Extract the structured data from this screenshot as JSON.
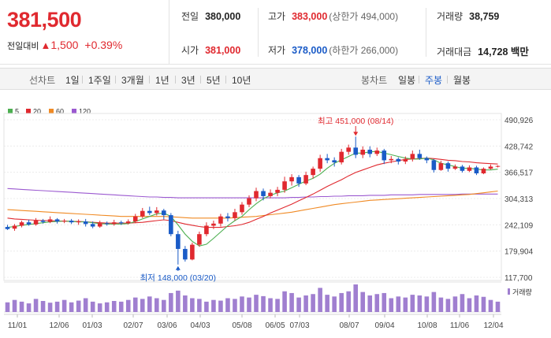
{
  "summary": {
    "price": "381,500",
    "change_label": "전일대비",
    "change_arrow": "▲",
    "change_value": "1,500",
    "change_pct": "+0.39%",
    "prev_close": {
      "label": "전일",
      "value": "380,000"
    },
    "high": {
      "label": "고가",
      "value": "383,000",
      "sub": "(상한가 494,000)"
    },
    "volume": {
      "label": "거래량",
      "value": "38,759"
    },
    "open": {
      "label": "시가",
      "value": "381,000"
    },
    "low": {
      "label": "저가",
      "value": "378,000",
      "sub": "(하한가 266,000)"
    },
    "amount": {
      "label": "거래대금",
      "value": "14,728 백만"
    }
  },
  "period_bar": {
    "line_label": "선차트",
    "line_periods": [
      "1일",
      "1주일",
      "3개월",
      "1년",
      "3년",
      "5년",
      "10년"
    ],
    "candle_label": "봉차트",
    "candle_periods": [
      "일봉",
      "주봉",
      "월봉"
    ],
    "active_candle": "주봉"
  },
  "colors": {
    "up": "#e0292f",
    "down": "#1a5bc7",
    "ma5": "#4caf50",
    "ma20": "#e0292f",
    "ma60": "#f08a24",
    "ma120": "#9b59d0",
    "volume": "#a07fd0"
  },
  "chart_data": {
    "type": "candlestick",
    "legend": [
      {
        "name": "5",
        "color": "#4caf50"
      },
      {
        "name": "20",
        "color": "#e0292f"
      },
      {
        "name": "60",
        "color": "#f08a24"
      },
      {
        "name": "120",
        "color": "#9b59d0"
      }
    ],
    "y_ticks": [
      490926,
      428742,
      366517,
      304313,
      242109,
      179904,
      117700
    ],
    "y_tick_labels": [
      "490,926",
      "428,742",
      "366,517",
      "304,313",
      "242,109",
      "179,904",
      "117,700"
    ],
    "ylim": [
      117700,
      490926
    ],
    "x_tick_labels": [
      "11/01",
      "12/06",
      "01/03",
      "02/07",
      "03/06",
      "04/03",
      "05/08",
      "06/05",
      "07/03",
      "08/07",
      "09/04",
      "10/08",
      "11/06",
      "12/04"
    ],
    "annotations": {
      "high": {
        "label": "최고 451,000 (08/14)",
        "value": 451000,
        "index": 49
      },
      "low": {
        "label": "최저 148,000 (03/20)",
        "value": 148000,
        "index": 24
      }
    },
    "volume_label": "거래량",
    "candles": [
      [
        237,
        232,
        242,
        230
      ],
      [
        233,
        240,
        244,
        228
      ],
      [
        240,
        248,
        252,
        236
      ],
      [
        248,
        243,
        254,
        240
      ],
      [
        243,
        252,
        258,
        240
      ],
      [
        252,
        249,
        256,
        245
      ],
      [
        249,
        255,
        262,
        246
      ],
      [
        255,
        250,
        258,
        245
      ],
      [
        250,
        252,
        256,
        246
      ],
      [
        252,
        248,
        256,
        244
      ],
      [
        248,
        250,
        255,
        242
      ],
      [
        250,
        244,
        256,
        238
      ],
      [
        244,
        238,
        250,
        234
      ],
      [
        238,
        246,
        252,
        235
      ],
      [
        246,
        244,
        250,
        240
      ],
      [
        244,
        248,
        254,
        240
      ],
      [
        248,
        246,
        252,
        242
      ],
      [
        246,
        250,
        255,
        243
      ],
      [
        250,
        262,
        268,
        246
      ],
      [
        262,
        275,
        282,
        258
      ],
      [
        275,
        270,
        285,
        265
      ],
      [
        270,
        276,
        284,
        264
      ],
      [
        276,
        265,
        280,
        255
      ],
      [
        265,
        220,
        270,
        215
      ],
      [
        220,
        185,
        228,
        148
      ],
      [
        185,
        160,
        192,
        155
      ],
      [
        160,
        195,
        200,
        158
      ],
      [
        195,
        220,
        226,
        190
      ],
      [
        220,
        240,
        248,
        215
      ],
      [
        240,
        245,
        252,
        232
      ],
      [
        245,
        262,
        268,
        238
      ],
      [
        262,
        258,
        270,
        250
      ],
      [
        258,
        272,
        280,
        252
      ],
      [
        272,
        290,
        296,
        266
      ],
      [
        290,
        305,
        312,
        284
      ],
      [
        305,
        322,
        330,
        298
      ],
      [
        322,
        310,
        328,
        300
      ],
      [
        310,
        318,
        326,
        305
      ],
      [
        318,
        325,
        332,
        310
      ],
      [
        325,
        345,
        356,
        318
      ],
      [
        345,
        355,
        362,
        335
      ],
      [
        355,
        340,
        360,
        332
      ],
      [
        340,
        360,
        368,
        336
      ],
      [
        360,
        375,
        380,
        352
      ],
      [
        375,
        400,
        408,
        368
      ],
      [
        400,
        395,
        410,
        388
      ],
      [
        395,
        390,
        402,
        380
      ],
      [
        390,
        415,
        422,
        385
      ],
      [
        415,
        425,
        432,
        408
      ],
      [
        425,
        408,
        451,
        400
      ],
      [
        408,
        420,
        428,
        400
      ],
      [
        420,
        410,
        428,
        402
      ],
      [
        410,
        418,
        425,
        405
      ],
      [
        418,
        395,
        422,
        386
      ],
      [
        395,
        398,
        405,
        388
      ],
      [
        398,
        392,
        402,
        385
      ],
      [
        392,
        398,
        404,
        386
      ],
      [
        398,
        410,
        418,
        392
      ],
      [
        410,
        400,
        420,
        396
      ],
      [
        400,
        395,
        404,
        388
      ],
      [
        395,
        372,
        398,
        366
      ],
      [
        372,
        388,
        394,
        370
      ],
      [
        388,
        375,
        392,
        368
      ],
      [
        375,
        380,
        385,
        372
      ],
      [
        380,
        370,
        384,
        366
      ],
      [
        370,
        378,
        383,
        367
      ],
      [
        378,
        364,
        382,
        360
      ],
      [
        364,
        375,
        378,
        362
      ],
      [
        375,
        380,
        385,
        373
      ],
      [
        380,
        381.5,
        383,
        378
      ]
    ],
    "ma5": [
      236,
      238,
      241,
      243,
      245,
      247,
      249,
      250,
      251,
      250,
      249,
      249,
      247,
      245,
      244,
      244,
      244,
      245,
      250,
      256,
      262,
      268,
      270,
      262,
      242,
      220,
      203,
      192,
      196,
      210,
      225,
      240,
      252,
      262,
      278,
      292,
      304,
      312,
      318,
      322,
      330,
      338,
      346,
      352,
      362,
      376,
      388,
      396,
      404,
      412,
      412,
      415,
      416,
      412,
      408,
      404,
      400,
      398,
      398,
      400,
      396,
      388,
      384,
      380,
      376,
      376,
      374,
      372,
      372,
      374
    ],
    "ma20": [
      258,
      256,
      255,
      254,
      253,
      252,
      252,
      251,
      251,
      250,
      250,
      249,
      248,
      247,
      246,
      246,
      246,
      246,
      247,
      248,
      250,
      252,
      254,
      252,
      248,
      244,
      241,
      238,
      236,
      236,
      236,
      238,
      240,
      243,
      248,
      255,
      262,
      270,
      277,
      284,
      291,
      299,
      307,
      315,
      324,
      333,
      341,
      349,
      358,
      366,
      372,
      378,
      384,
      388,
      391,
      394,
      397,
      398,
      399,
      400,
      399,
      397,
      395,
      394,
      392,
      391,
      389,
      388,
      387,
      386
    ],
    "ma60": [
      278,
      277,
      276,
      275,
      274,
      273,
      272,
      271,
      270,
      269,
      268,
      267,
      266,
      265,
      264,
      263,
      262,
      262,
      262,
      262,
      262,
      262,
      262,
      261,
      260,
      259,
      258,
      258,
      258,
      258,
      258,
      258,
      259,
      260,
      261,
      262,
      264,
      266,
      268,
      270,
      272,
      275,
      278,
      281,
      284,
      287,
      290,
      292,
      294,
      296,
      298,
      300,
      301,
      302,
      303,
      304,
      305,
      306,
      307,
      308,
      309,
      310,
      311,
      312,
      313,
      314,
      316,
      318,
      320,
      322
    ],
    "ma120": [
      328,
      327,
      326,
      325,
      324,
      323,
      322,
      321,
      320,
      319,
      318,
      317,
      316,
      315,
      314,
      313,
      312,
      311,
      310,
      309,
      308,
      308,
      307,
      307,
      306,
      306,
      306,
      306,
      306,
      306,
      306,
      306,
      306,
      306,
      306,
      306,
      306,
      306,
      306,
      306,
      307,
      307,
      308,
      308,
      309,
      309,
      310,
      310,
      311,
      311,
      311,
      312,
      312,
      312,
      313,
      313,
      313,
      313,
      314,
      314,
      314,
      314,
      314,
      314,
      315,
      315,
      315,
      315,
      315,
      315
    ],
    "volume": [
      28,
      35,
      30,
      25,
      38,
      32,
      27,
      30,
      35,
      28,
      33,
      40,
      30,
      25,
      28,
      32,
      30,
      35,
      42,
      38,
      45,
      40,
      35,
      55,
      62,
      48,
      40,
      38,
      30,
      35,
      33,
      40,
      38,
      45,
      42,
      50,
      46,
      40,
      38,
      60,
      55,
      42,
      48,
      52,
      70,
      50,
      45,
      55,
      60,
      80,
      58,
      48,
      52,
      55,
      40,
      45,
      42,
      50,
      48,
      45,
      58,
      42,
      38,
      45,
      52,
      40,
      48,
      44,
      35,
      30
    ]
  }
}
